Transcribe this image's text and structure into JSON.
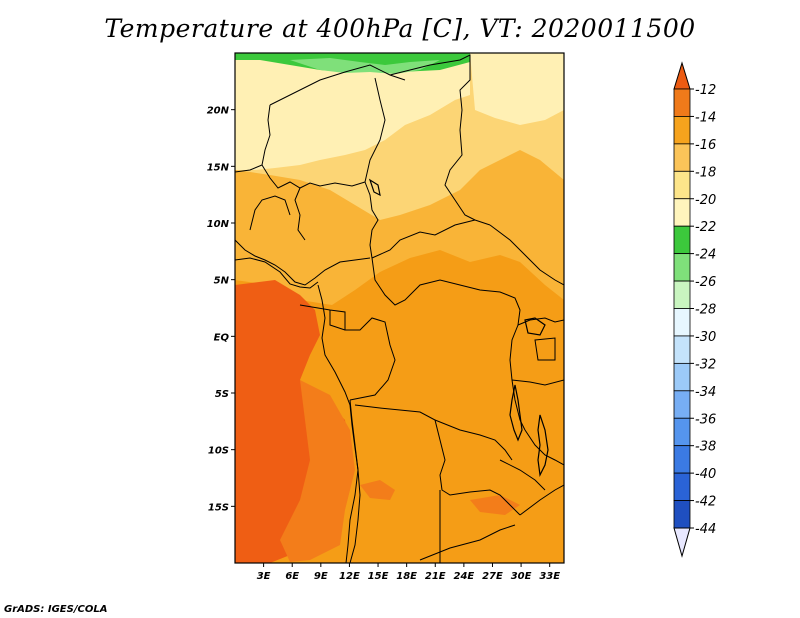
{
  "title": "Temperature at 400hPa [C], VT: 2020011500",
  "credit": "GrADS: IGES/COLA",
  "map": {
    "lon_range": [
      0,
      34.5
    ],
    "lat_range": [
      -20,
      25
    ],
    "lat_labels": [
      {
        "lat": 20,
        "text": "20N"
      },
      {
        "lat": 15,
        "text": "15N"
      },
      {
        "lat": 10,
        "text": "10N"
      },
      {
        "lat": 5,
        "text": "5N"
      },
      {
        "lat": 0,
        "text": "EQ"
      },
      {
        "lat": -5,
        "text": "5S"
      },
      {
        "lat": -10,
        "text": "10S"
      },
      {
        "lat": -15,
        "text": "15S"
      }
    ],
    "lon_labels": [
      {
        "lon": 3,
        "text": "3E"
      },
      {
        "lon": 6,
        "text": "6E"
      },
      {
        "lon": 9,
        "text": "9E"
      },
      {
        "lon": 12,
        "text": "12E"
      },
      {
        "lon": 15,
        "text": "15E"
      },
      {
        "lon": 18,
        "text": "18E"
      },
      {
        "lon": 21,
        "text": "21E"
      },
      {
        "lon": 24,
        "text": "24E"
      },
      {
        "lon": 27,
        "text": "27E"
      },
      {
        "lon": 30,
        "text": "30E"
      },
      {
        "lon": 33,
        "text": "33E"
      }
    ]
  },
  "colorbar": {
    "labels": [
      "-12",
      "-14",
      "-16",
      "-18",
      "-20",
      "-22",
      "-24",
      "-26",
      "-28",
      "-30",
      "-32",
      "-34",
      "-36",
      "-38",
      "-40",
      "-42",
      "-44"
    ],
    "colors": [
      "#e8e8ff",
      "#0b1a7a",
      "#1f4fc0",
      "#2a63d6",
      "#3b7ae3",
      "#5595ee",
      "#77aef4",
      "#9ccaf8",
      "#c4e3fb",
      "#e7f7ff",
      "#c9f5c0",
      "#7fe07a",
      "#3cc83c",
      "#fff5bd",
      "#fde58a",
      "#fbc459",
      "#f6a31d",
      "#f07a1a",
      "#ec5b12"
    ]
  }
}
